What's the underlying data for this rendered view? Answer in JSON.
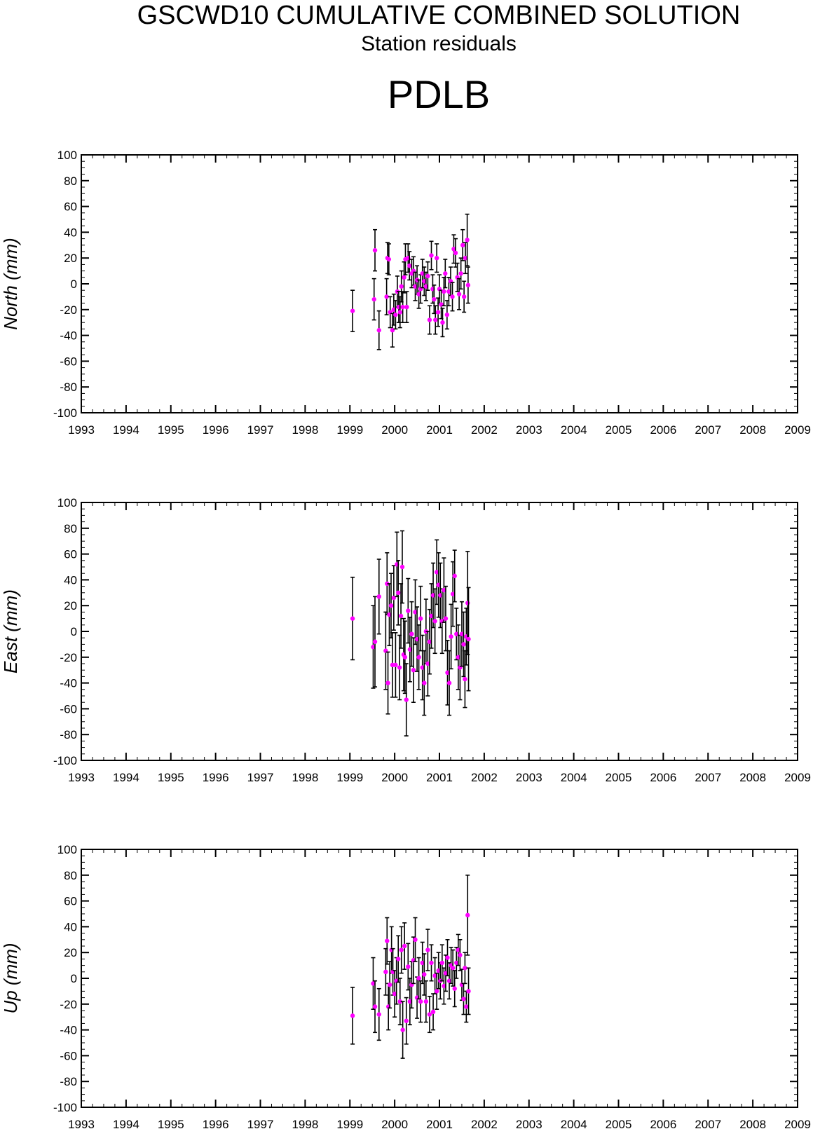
{
  "title": "GSCWD10 CUMULATIVE COMBINED SOLUTION",
  "subtitle": "Station residuals",
  "station": "PDLB",
  "colors": {
    "marker": "#ff00ff",
    "errorbar": "#000000",
    "axis": "#000000"
  },
  "chart_data": [
    {
      "type": "scatter",
      "ylabel": "North (mm)",
      "xlim": [
        1993,
        2009
      ],
      "ylim": [
        -100,
        100
      ],
      "xticks": [
        "1993",
        "1994",
        "1995",
        "1996",
        "1997",
        "1998",
        "1999",
        "2000",
        "2001",
        "2002",
        "2003",
        "2004",
        "2005",
        "2006",
        "2007",
        "2008",
        "2009"
      ],
      "yticks": [
        "100",
        "80",
        "60",
        "40",
        "20",
        "0",
        "-20",
        "-40",
        "-60",
        "-80",
        "-100"
      ],
      "grid": false,
      "points": [
        {
          "x": 1999.06,
          "y": -21,
          "err": 16
        },
        {
          "x": 1999.54,
          "y": -12,
          "err": 16
        },
        {
          "x": 1999.56,
          "y": 26,
          "err": 16
        },
        {
          "x": 1999.65,
          "y": -36,
          "err": 15
        },
        {
          "x": 1999.82,
          "y": -10,
          "err": 14
        },
        {
          "x": 1999.84,
          "y": 20,
          "err": 12
        },
        {
          "x": 1999.87,
          "y": 19,
          "err": 12
        },
        {
          "x": 1999.9,
          "y": -22,
          "err": 12
        },
        {
          "x": 1999.95,
          "y": -36,
          "err": 13
        },
        {
          "x": 1999.98,
          "y": -20,
          "err": 12
        },
        {
          "x": 2000.02,
          "y": -24,
          "err": 11
        },
        {
          "x": 2000.06,
          "y": -6,
          "err": 12
        },
        {
          "x": 2000.09,
          "y": -18,
          "err": 12
        },
        {
          "x": 2000.12,
          "y": -22,
          "err": 12
        },
        {
          "x": 2000.15,
          "y": -2,
          "err": 12
        },
        {
          "x": 2000.18,
          "y": -18,
          "err": 12
        },
        {
          "x": 2000.21,
          "y": 5,
          "err": 12
        },
        {
          "x": 2000.24,
          "y": 19,
          "err": 12
        },
        {
          "x": 2000.27,
          "y": -18,
          "err": 12
        },
        {
          "x": 2000.3,
          "y": 20,
          "err": 11
        },
        {
          "x": 2000.33,
          "y": 14,
          "err": 11
        },
        {
          "x": 2000.38,
          "y": 8,
          "err": 11
        },
        {
          "x": 2000.42,
          "y": 10,
          "err": 11
        },
        {
          "x": 2000.46,
          "y": -2,
          "err": 11
        },
        {
          "x": 2000.5,
          "y": 3,
          "err": 11
        },
        {
          "x": 2000.54,
          "y": -8,
          "err": 11
        },
        {
          "x": 2000.58,
          "y": -4,
          "err": 11
        },
        {
          "x": 2000.62,
          "y": 8,
          "err": 11
        },
        {
          "x": 2000.66,
          "y": 2,
          "err": 11
        },
        {
          "x": 2000.7,
          "y": -2,
          "err": 11
        },
        {
          "x": 2000.74,
          "y": 6,
          "err": 11
        },
        {
          "x": 2000.78,
          "y": -28,
          "err": 11
        },
        {
          "x": 2000.82,
          "y": 22,
          "err": 11
        },
        {
          "x": 2000.85,
          "y": -4,
          "err": 11
        },
        {
          "x": 2000.88,
          "y": -12,
          "err": 11
        },
        {
          "x": 2000.91,
          "y": -28,
          "err": 11
        },
        {
          "x": 2000.94,
          "y": 20,
          "err": 11
        },
        {
          "x": 2000.97,
          "y": -22,
          "err": 11
        },
        {
          "x": 2001.0,
          "y": -4,
          "err": 11
        },
        {
          "x": 2001.04,
          "y": -16,
          "err": 11
        },
        {
          "x": 2001.07,
          "y": -30,
          "err": 11
        },
        {
          "x": 2001.1,
          "y": -6,
          "err": 11
        },
        {
          "x": 2001.13,
          "y": 8,
          "err": 11
        },
        {
          "x": 2001.17,
          "y": -24,
          "err": 11
        },
        {
          "x": 2001.21,
          "y": -6,
          "err": 11
        },
        {
          "x": 2001.25,
          "y": 2,
          "err": 11
        },
        {
          "x": 2001.29,
          "y": -10,
          "err": 11
        },
        {
          "x": 2001.32,
          "y": 27,
          "err": 11
        },
        {
          "x": 2001.36,
          "y": 24,
          "err": 11
        },
        {
          "x": 2001.4,
          "y": 5,
          "err": 11
        },
        {
          "x": 2001.44,
          "y": -8,
          "err": 12
        },
        {
          "x": 2001.48,
          "y": 8,
          "err": 12
        },
        {
          "x": 2001.52,
          "y": 30,
          "err": 12
        },
        {
          "x": 2001.55,
          "y": -10,
          "err": 12
        },
        {
          "x": 2001.58,
          "y": 20,
          "err": 12
        },
        {
          "x": 2001.62,
          "y": 34,
          "err": 20
        },
        {
          "x": 2001.64,
          "y": -1,
          "err": 14
        }
      ]
    },
    {
      "type": "scatter",
      "ylabel": "East (mm)",
      "xlim": [
        1993,
        2009
      ],
      "ylim": [
        -100,
        100
      ],
      "xticks": [
        "1993",
        "1994",
        "1995",
        "1996",
        "1997",
        "1998",
        "1999",
        "2000",
        "2001",
        "2002",
        "2003",
        "2004",
        "2005",
        "2006",
        "2007",
        "2008",
        "2009"
      ],
      "yticks": [
        "100",
        "80",
        "60",
        "40",
        "20",
        "0",
        "-20",
        "-40",
        "-60",
        "-80",
        "-100"
      ],
      "grid": false,
      "points": [
        {
          "x": 1999.06,
          "y": 10,
          "err": 32
        },
        {
          "x": 1999.52,
          "y": -12,
          "err": 32
        },
        {
          "x": 1999.56,
          "y": -8,
          "err": 35
        },
        {
          "x": 1999.65,
          "y": 27,
          "err": 29
        },
        {
          "x": 1999.8,
          "y": -15,
          "err": 30
        },
        {
          "x": 1999.83,
          "y": 37,
          "err": 24
        },
        {
          "x": 1999.85,
          "y": -40,
          "err": 24
        },
        {
          "x": 1999.88,
          "y": 13,
          "err": 24
        },
        {
          "x": 1999.92,
          "y": 20,
          "err": 25
        },
        {
          "x": 1999.95,
          "y": -26,
          "err": 25
        },
        {
          "x": 1999.98,
          "y": 26,
          "err": 25
        },
        {
          "x": 2000.02,
          "y": -26,
          "err": 25
        },
        {
          "x": 2000.05,
          "y": 52,
          "err": 25
        },
        {
          "x": 2000.08,
          "y": 30,
          "err": 25
        },
        {
          "x": 2000.11,
          "y": -28,
          "err": 25
        },
        {
          "x": 2000.14,
          "y": 12,
          "err": 25
        },
        {
          "x": 2000.17,
          "y": 50,
          "err": 28
        },
        {
          "x": 2000.2,
          "y": -18,
          "err": 28
        },
        {
          "x": 2000.23,
          "y": -20,
          "err": 28
        },
        {
          "x": 2000.26,
          "y": -53,
          "err": 28
        },
        {
          "x": 2000.3,
          "y": 16,
          "err": 25
        },
        {
          "x": 2000.34,
          "y": -14,
          "err": 25
        },
        {
          "x": 2000.38,
          "y": -2,
          "err": 25
        },
        {
          "x": 2000.42,
          "y": -30,
          "err": 25
        },
        {
          "x": 2000.46,
          "y": 15,
          "err": 25
        },
        {
          "x": 2000.5,
          "y": -6,
          "err": 25
        },
        {
          "x": 2000.54,
          "y": -20,
          "err": 25
        },
        {
          "x": 2000.58,
          "y": 10,
          "err": 25
        },
        {
          "x": 2000.62,
          "y": -28,
          "err": 25
        },
        {
          "x": 2000.66,
          "y": -40,
          "err": 25
        },
        {
          "x": 2000.7,
          "y": 0,
          "err": 25
        },
        {
          "x": 2000.74,
          "y": -25,
          "err": 25
        },
        {
          "x": 2000.78,
          "y": -8,
          "err": 25
        },
        {
          "x": 2000.82,
          "y": 12,
          "err": 25
        },
        {
          "x": 2000.86,
          "y": 28,
          "err": 25
        },
        {
          "x": 2000.9,
          "y": 8,
          "err": 25
        },
        {
          "x": 2000.94,
          "y": 46,
          "err": 25
        },
        {
          "x": 2000.98,
          "y": 36,
          "err": 25
        },
        {
          "x": 2001.02,
          "y": 28,
          "err": 25
        },
        {
          "x": 2001.06,
          "y": 8,
          "err": 25
        },
        {
          "x": 2001.1,
          "y": 32,
          "err": 25
        },
        {
          "x": 2001.14,
          "y": 10,
          "err": 25
        },
        {
          "x": 2001.18,
          "y": -32,
          "err": 25
        },
        {
          "x": 2001.22,
          "y": -40,
          "err": 25
        },
        {
          "x": 2001.26,
          "y": -4,
          "err": 25
        },
        {
          "x": 2001.3,
          "y": 29,
          "err": 25
        },
        {
          "x": 2001.34,
          "y": 43,
          "err": 20
        },
        {
          "x": 2001.38,
          "y": -2,
          "err": 20
        },
        {
          "x": 2001.42,
          "y": -20,
          "err": 25
        },
        {
          "x": 2001.46,
          "y": -28,
          "err": 25
        },
        {
          "x": 2001.5,
          "y": -2,
          "err": 25
        },
        {
          "x": 2001.54,
          "y": -10,
          "err": 25
        },
        {
          "x": 2001.57,
          "y": -37,
          "err": 22
        },
        {
          "x": 2001.6,
          "y": -4,
          "err": 22
        },
        {
          "x": 2001.63,
          "y": 22,
          "err": 40
        },
        {
          "x": 2001.65,
          "y": -6,
          "err": 40
        }
      ]
    },
    {
      "type": "scatter",
      "ylabel": "Up (mm)",
      "xlim": [
        1993,
        2009
      ],
      "ylim": [
        -100,
        100
      ],
      "xticks": [
        "1993",
        "1994",
        "1995",
        "1996",
        "1997",
        "1998",
        "1999",
        "2000",
        "2001",
        "2002",
        "2003",
        "2004",
        "2005",
        "2006",
        "2007",
        "2008",
        "2009"
      ],
      "yticks": [
        "100",
        "80",
        "60",
        "40",
        "20",
        "0",
        "-20",
        "-40",
        "-60",
        "-80",
        "-100"
      ],
      "grid": false,
      "points": [
        {
          "x": 1999.06,
          "y": -29,
          "err": 22
        },
        {
          "x": 1999.52,
          "y": -4,
          "err": 20
        },
        {
          "x": 1999.56,
          "y": -22,
          "err": 20
        },
        {
          "x": 1999.65,
          "y": -28,
          "err": 20
        },
        {
          "x": 1999.8,
          "y": 5,
          "err": 18
        },
        {
          "x": 1999.83,
          "y": 29,
          "err": 18
        },
        {
          "x": 1999.86,
          "y": -22,
          "err": 18
        },
        {
          "x": 1999.89,
          "y": -5,
          "err": 18
        },
        {
          "x": 1999.93,
          "y": 22,
          "err": 18
        },
        {
          "x": 1999.96,
          "y": 5,
          "err": 18
        },
        {
          "x": 2000.0,
          "y": -12,
          "err": 18
        },
        {
          "x": 2000.04,
          "y": -2,
          "err": 18
        },
        {
          "x": 2000.08,
          "y": 15,
          "err": 18
        },
        {
          "x": 2000.12,
          "y": -18,
          "err": 18
        },
        {
          "x": 2000.15,
          "y": 22,
          "err": 18
        },
        {
          "x": 2000.18,
          "y": -40,
          "err": 22
        },
        {
          "x": 2000.22,
          "y": 25,
          "err": 18
        },
        {
          "x": 2000.26,
          "y": -33,
          "err": 18
        },
        {
          "x": 2000.3,
          "y": 9,
          "err": 18
        },
        {
          "x": 2000.34,
          "y": -18,
          "err": 18
        },
        {
          "x": 2000.38,
          "y": -5,
          "err": 18
        },
        {
          "x": 2000.42,
          "y": 14,
          "err": 18
        },
        {
          "x": 2000.46,
          "y": 30,
          "err": 17
        },
        {
          "x": 2000.5,
          "y": -15,
          "err": 16
        },
        {
          "x": 2000.54,
          "y": 0,
          "err": 16
        },
        {
          "x": 2000.58,
          "y": -18,
          "err": 16
        },
        {
          "x": 2000.62,
          "y": 12,
          "err": 16
        },
        {
          "x": 2000.66,
          "y": 3,
          "err": 16
        },
        {
          "x": 2000.7,
          "y": -18,
          "err": 16
        },
        {
          "x": 2000.74,
          "y": 22,
          "err": 16
        },
        {
          "x": 2000.78,
          "y": -28,
          "err": 14
        },
        {
          "x": 2000.82,
          "y": 12,
          "err": 14
        },
        {
          "x": 2000.86,
          "y": -26,
          "err": 14
        },
        {
          "x": 2000.9,
          "y": 2,
          "err": 14
        },
        {
          "x": 2000.94,
          "y": -10,
          "err": 14
        },
        {
          "x": 2000.98,
          "y": 6,
          "err": 14
        },
        {
          "x": 2001.02,
          "y": -2,
          "err": 14
        },
        {
          "x": 2001.06,
          "y": 12,
          "err": 14
        },
        {
          "x": 2001.1,
          "y": -6,
          "err": 14
        },
        {
          "x": 2001.14,
          "y": 4,
          "err": 14
        },
        {
          "x": 2001.18,
          "y": 16,
          "err": 14
        },
        {
          "x": 2001.22,
          "y": -2,
          "err": 14
        },
        {
          "x": 2001.26,
          "y": 10,
          "err": 14
        },
        {
          "x": 2001.3,
          "y": 8,
          "err": 14
        },
        {
          "x": 2001.34,
          "y": -8,
          "err": 14
        },
        {
          "x": 2001.38,
          "y": 12,
          "err": 12
        },
        {
          "x": 2001.42,
          "y": 22,
          "err": 12
        },
        {
          "x": 2001.46,
          "y": 18,
          "err": 12
        },
        {
          "x": 2001.5,
          "y": -5,
          "err": 12
        },
        {
          "x": 2001.54,
          "y": -16,
          "err": 12
        },
        {
          "x": 2001.57,
          "y": 8,
          "err": 12
        },
        {
          "x": 2001.6,
          "y": -22,
          "err": 12
        },
        {
          "x": 2001.63,
          "y": 49,
          "err": 31
        },
        {
          "x": 2001.65,
          "y": -10,
          "err": 18
        }
      ]
    }
  ]
}
